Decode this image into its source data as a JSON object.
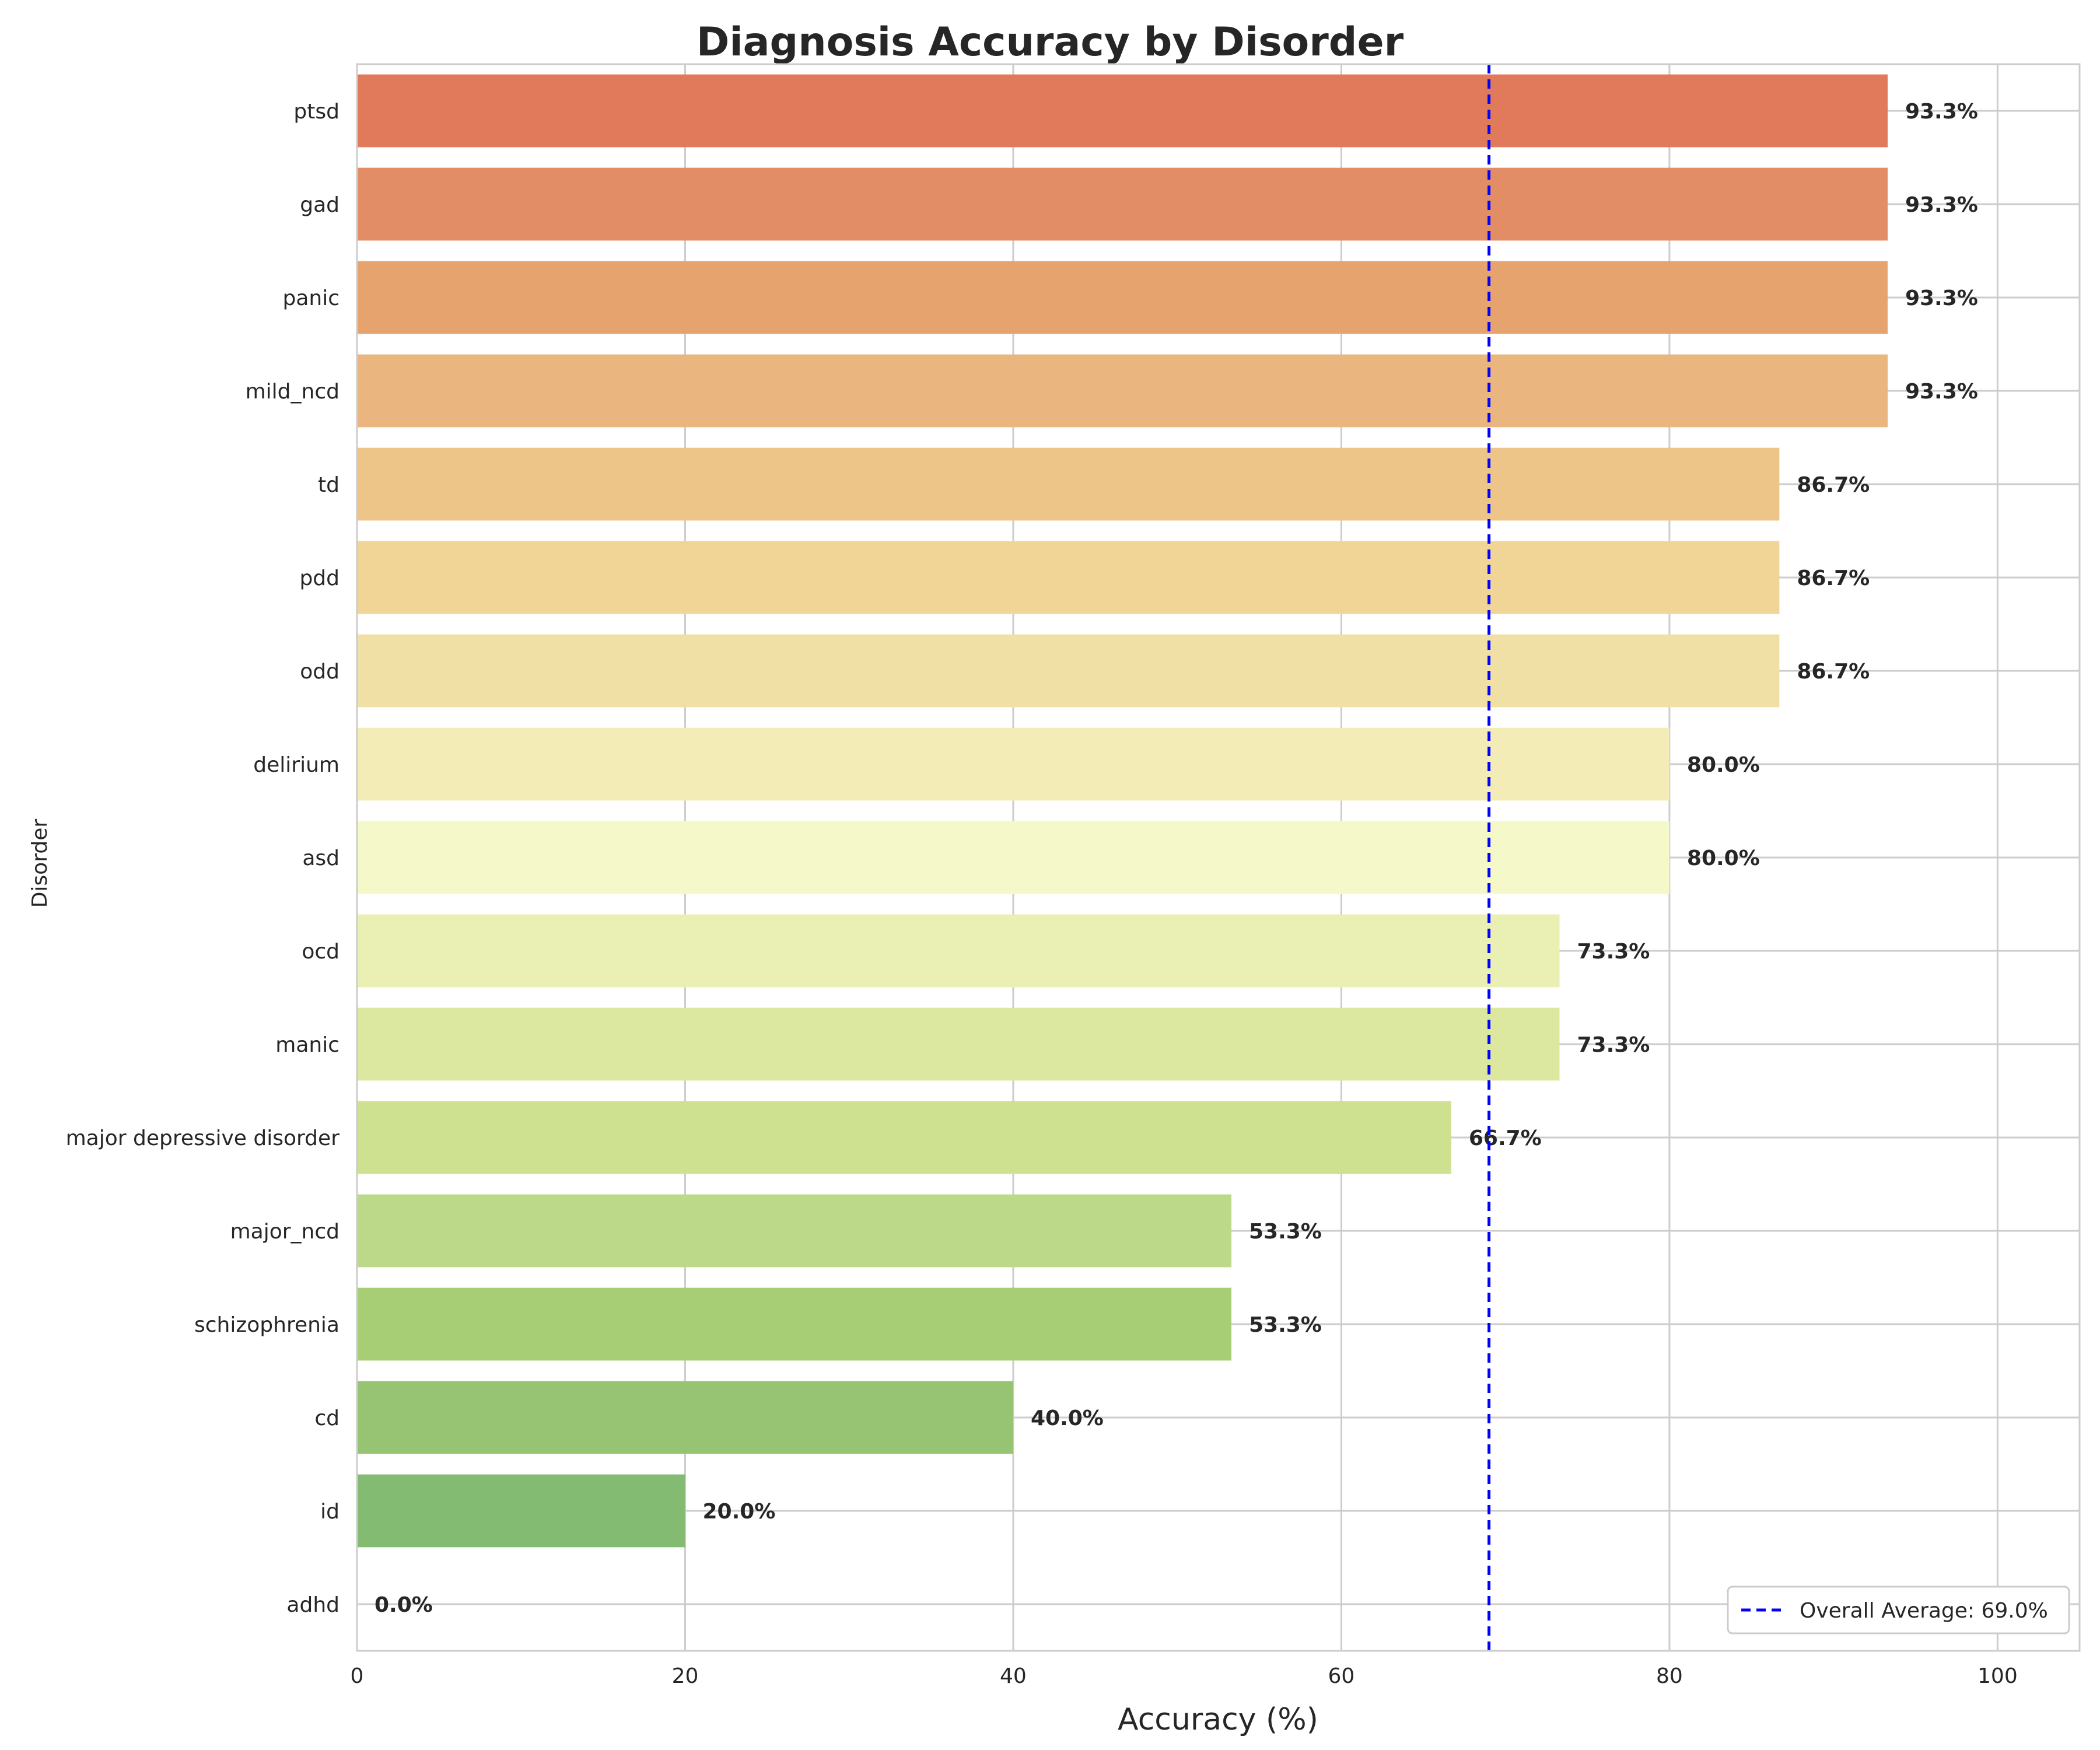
{
  "chart_data": {
    "type": "bar",
    "orientation": "horizontal",
    "title": "Diagnosis Accuracy by Disorder",
    "xlabel": "Accuracy (%)",
    "ylabel": "Disorder",
    "xlim": [
      0,
      105
    ],
    "xticks": [
      0,
      20,
      40,
      60,
      80,
      100
    ],
    "grid": true,
    "categories": [
      "ptsd",
      "gad",
      "panic",
      "mild_ncd",
      "td",
      "pdd",
      "odd",
      "delirium",
      "asd",
      "ocd",
      "manic",
      "major depressive disorder",
      "major_ncd",
      "schizophrenia",
      "cd",
      "id",
      "adhd"
    ],
    "values": [
      93.3,
      93.3,
      93.3,
      93.3,
      86.7,
      86.7,
      86.7,
      80.0,
      80.0,
      73.3,
      73.3,
      66.7,
      53.3,
      53.3,
      40.0,
      20.0,
      0.0
    ],
    "value_labels": [
      "93.3%",
      "93.3%",
      "93.3%",
      "93.3%",
      "86.7%",
      "86.7%",
      "86.7%",
      "80.0%",
      "80.0%",
      "73.3%",
      "73.3%",
      "66.7%",
      "53.3%",
      "53.3%",
      "40.0%",
      "20.0%",
      "0.0%"
    ],
    "colors": [
      "#e07a5a",
      "#e38d66",
      "#e7a36e",
      "#eab57e",
      "#edc589",
      "#f0d597",
      "#f1e0a6",
      "#f3ecb6",
      "#f5f8c8",
      "#eaefb4",
      "#dce79f",
      "#cee191",
      "#bcd889",
      "#a8ce75",
      "#97c472",
      "#82bb71",
      "#6faf68"
    ],
    "reference_line": {
      "value": 69.0,
      "label": "Overall Average: 69.0%",
      "color": "#0000ff",
      "style": "dashed"
    },
    "legend_position": "bottom-right"
  }
}
